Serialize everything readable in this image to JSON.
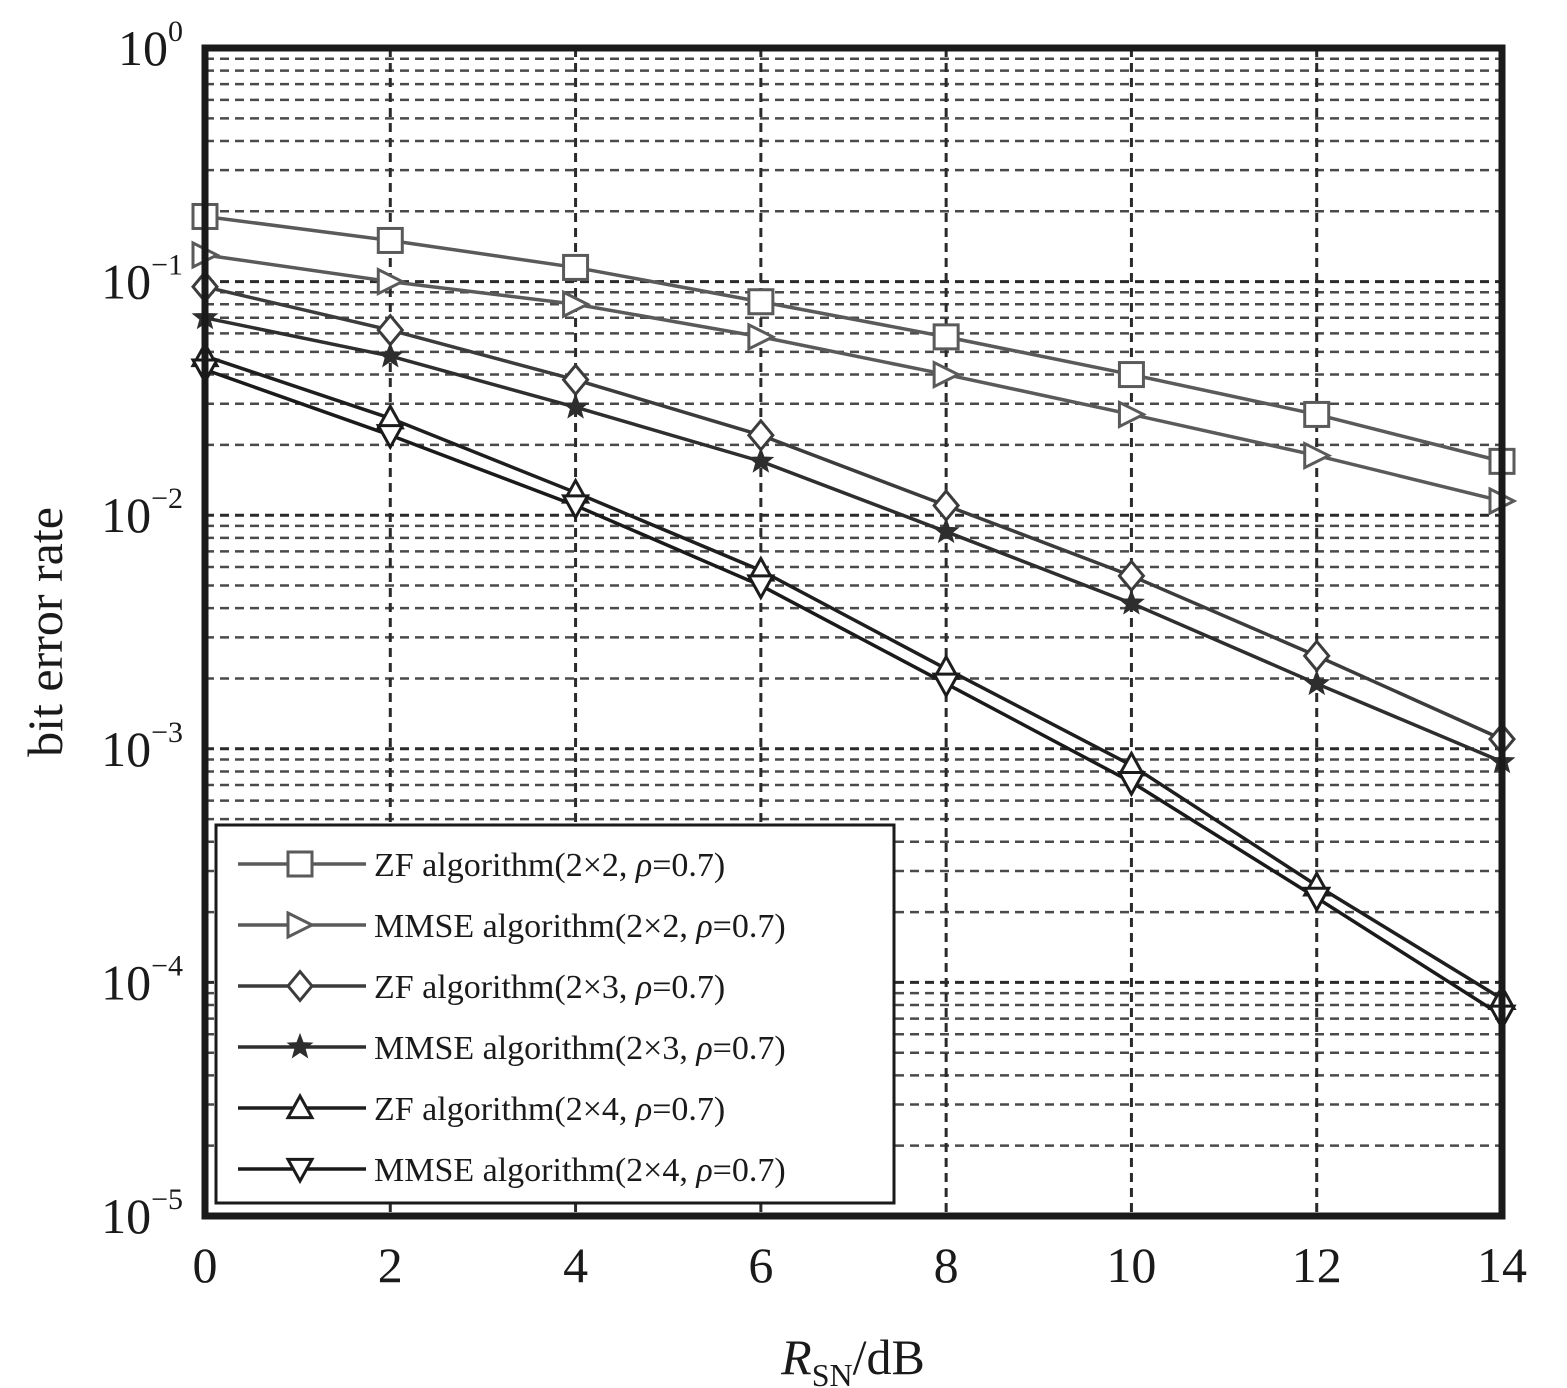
{
  "chart_data": {
    "type": "line",
    "title": "",
    "xlabel": {
      "main": "R",
      "sub": "SN",
      "suffix": "/dB"
    },
    "ylabel": "bit error rate",
    "x": [
      0,
      2,
      4,
      6,
      8,
      10,
      12,
      14
    ],
    "xlim": [
      0,
      14
    ],
    "xticks": [
      "0",
      "2",
      "4",
      "6",
      "8",
      "10",
      "12",
      "14"
    ],
    "ylim": [
      1e-05,
      1
    ],
    "yscale": "log",
    "yticks": [
      {
        "base": "10",
        "exp": "0"
      },
      {
        "base": "10",
        "exp": "−1"
      },
      {
        "base": "10",
        "exp": "−2"
      },
      {
        "base": "10",
        "exp": "−3"
      },
      {
        "base": "10",
        "exp": "−4"
      },
      {
        "base": "10",
        "exp": "−5"
      }
    ],
    "grid": true,
    "legend_position": "bottom-left",
    "series": [
      {
        "name": "ZF algorithm(2×2, ρ=0.7)",
        "marker": "square",
        "color": "#5a5a5a",
        "values": [
          0.19,
          0.15,
          0.115,
          0.082,
          0.058,
          0.04,
          0.027,
          0.017
        ]
      },
      {
        "name": "MMSE algorithm(2×2, ρ=0.7)",
        "marker": "triangle-right",
        "color": "#5a5a5a",
        "values": [
          0.13,
          0.1,
          0.08,
          0.058,
          0.04,
          0.027,
          0.018,
          0.0115
        ]
      },
      {
        "name": "ZF algorithm(2×3, ρ=0.7)",
        "marker": "diamond",
        "color": "#3c3c3c",
        "values": [
          0.095,
          0.062,
          0.038,
          0.022,
          0.011,
          0.0055,
          0.0025,
          0.0011
        ]
      },
      {
        "name": "MMSE algorithm(2×3, ρ=0.7)",
        "marker": "star",
        "color": "#2e2e2e",
        "values": [
          0.07,
          0.048,
          0.029,
          0.017,
          0.0085,
          0.0042,
          0.0019,
          0.00088
        ]
      },
      {
        "name": "ZF algorithm(2×4, ρ=0.7)",
        "marker": "triangle-up",
        "color": "#1e1e1e",
        "values": [
          0.048,
          0.026,
          0.0125,
          0.0058,
          0.0022,
          0.00085,
          0.00026,
          8.5e-05
        ]
      },
      {
        "name": "MMSE algorithm(2×4, ρ=0.7)",
        "marker": "triangle-down",
        "color": "#1a1a1a",
        "values": [
          0.042,
          0.022,
          0.011,
          0.005,
          0.0019,
          0.00072,
          0.00023,
          7.2e-05
        ]
      }
    ]
  }
}
